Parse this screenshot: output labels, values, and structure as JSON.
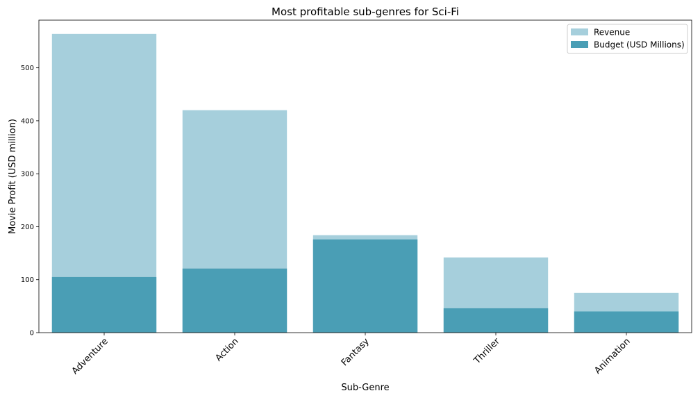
{
  "chart_data": {
    "type": "bar",
    "title": "Most profitable sub-genres for Sci-Fi",
    "xlabel": "Sub-Genre",
    "ylabel": "Movie Profit (USD million)",
    "categories": [
      "Adventure",
      "Action",
      "Fantasy",
      "Thriller",
      "Animation"
    ],
    "series": [
      {
        "name": "Revenue",
        "color": "#a6cfdc",
        "values": [
          564,
          420,
          184,
          142,
          75
        ]
      },
      {
        "name": "Budget (USD Millions)",
        "color": "#4a9eb5",
        "values": [
          105,
          121,
          176,
          46,
          40
        ]
      }
    ],
    "ylim": [
      0,
      590
    ],
    "yticks": [
      0,
      100,
      200,
      300,
      400,
      500
    ],
    "grid": false,
    "legend_position": "top-right",
    "bar_mode": "overlay"
  }
}
